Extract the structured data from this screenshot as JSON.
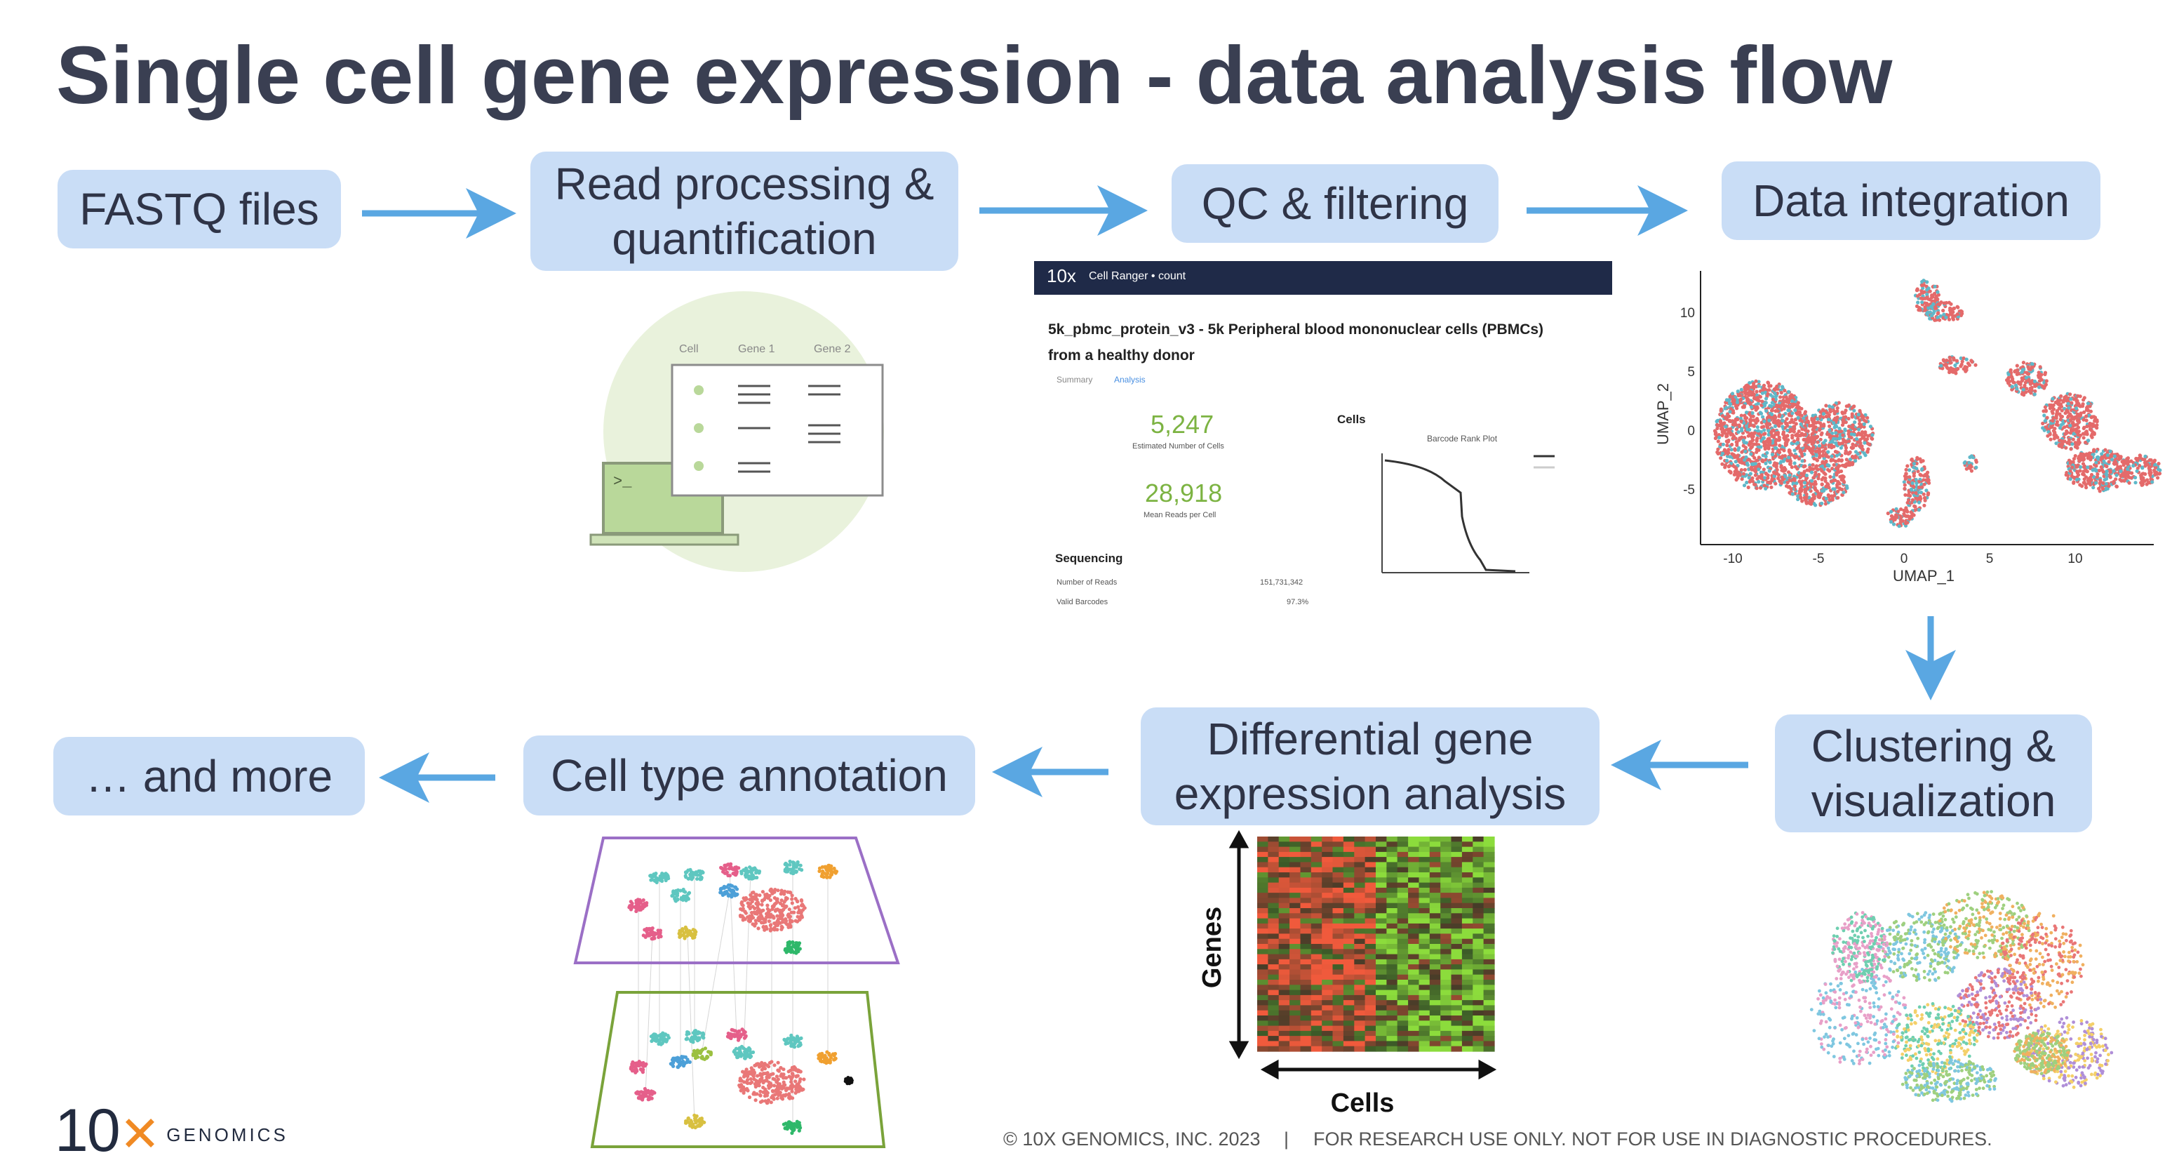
{
  "title": "Single cell gene expression - data analysis flow",
  "steps": {
    "fastq": "FASTQ files",
    "read_processing_line1": "Read processing &",
    "read_processing_line2": "quantification",
    "qc": "QC & filtering",
    "integration": "Data integration",
    "clustering_line1": "Clustering &",
    "clustering_line2": "visualization",
    "dge_line1": "Differential gene",
    "dge_line2": "expression analysis",
    "annotation": "Cell type annotation",
    "more": "… and more"
  },
  "qc_panel": {
    "header": "Cell Ranger • count",
    "heading_line1": "5k_pbmc_protein_v3 - 5k Peripheral blood mononuclear cells (PBMCs)",
    "heading_line2": "from a healthy donor",
    "tabs": [
      "Summary",
      "Analysis"
    ],
    "estimated_cells_value": "5,247",
    "estimated_cells_label": "Estimated Number of Cells",
    "mean_reads_value": "28,918",
    "mean_reads_label": "Mean Reads per Cell",
    "cells_label": "Cells",
    "barcode_plot_title": "Barcode Rank Plot",
    "sequencing_label": "Sequencing",
    "seq_rows": [
      {
        "label": "Number of Reads",
        "value": "151,731,342"
      },
      {
        "label": "Valid Barcodes",
        "value": "97.3%"
      }
    ]
  },
  "table_icon": {
    "headers": [
      "Cell",
      "Gene 1",
      "Gene 2"
    ],
    "prompt": ">_"
  },
  "umap": {
    "xlabel": "UMAP_1",
    "ylabel": "UMAP_2",
    "xticks": [
      "-10",
      "-5",
      "0",
      "5",
      "10"
    ],
    "yticks": [
      "10",
      "5",
      "0",
      "-5"
    ]
  },
  "heatmap": {
    "ylabel": "Genes",
    "xlabel": "Cells"
  },
  "logo": {
    "mark": "10",
    "word": "GENOMICS"
  },
  "footer": {
    "copyright": "© 10X GENOMICS, INC. 2023",
    "separator": "|",
    "disclaimer": "FOR RESEARCH USE ONLY. NOT FOR USE IN DIAGNOSTIC PROCEDURES."
  },
  "colors": {
    "box": "#c9ddf6",
    "arrow": "#5aa7e2",
    "title": "#3a3f52",
    "accent_green": "#7cb342",
    "logo_orange": "#f08a24"
  }
}
